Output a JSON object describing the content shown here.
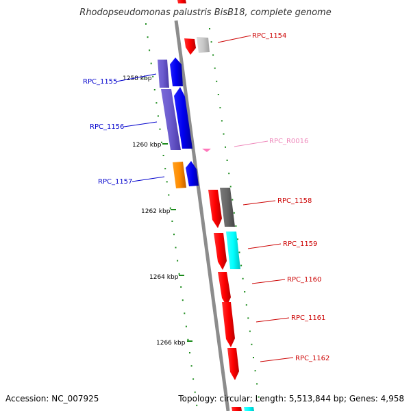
{
  "title": "Rhodopseudomonas palustris BisB18, complete genome",
  "accession": "Accession: NC_007925",
  "summary": "Topology: circular; Length: 5,513,844 bp; Genes: 4,958",
  "colors": {
    "backbone": "#8c8c8c",
    "tick": "#1a8a1a",
    "label_forward": "#cc0000",
    "label_reverse": "#0000cc",
    "label_rna": "#ee88bb"
  },
  "ticks": [
    {
      "label": "1258 kbp"
    },
    {
      "label": "1260 kbp"
    },
    {
      "label": "1262 kbp"
    },
    {
      "label": "1264 kbp"
    },
    {
      "label": "1266 kbp"
    }
  ],
  "labels": [
    {
      "id": "RPC_1154",
      "text": "RPC_1154"
    },
    {
      "id": "RPC_1155",
      "text": "RPC_1155"
    },
    {
      "id": "RPC_1156",
      "text": "RPC_1156"
    },
    {
      "id": "RPC_R0016",
      "text": "RPC_R0016"
    },
    {
      "id": "RPC_1157",
      "text": "RPC_1157"
    },
    {
      "id": "RPC_1158",
      "text": "RPC_1158"
    },
    {
      "id": "RPC_1159",
      "text": "RPC_1159"
    },
    {
      "id": "RPC_1160",
      "text": "RPC_1160"
    },
    {
      "id": "RPC_1161",
      "text": "RPC_1161"
    },
    {
      "id": "RPC_1162",
      "text": "RPC_1162"
    }
  ]
}
